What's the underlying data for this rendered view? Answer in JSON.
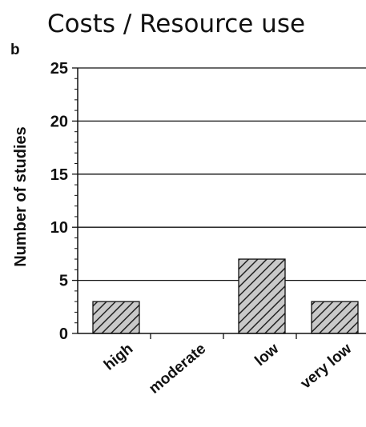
{
  "chart_data": {
    "type": "bar",
    "title": "Costs / Resource use",
    "panel_label": "b",
    "xlabel": "",
    "ylabel": "Number of studies",
    "categories": [
      "high",
      "moderate",
      "low",
      "very low"
    ],
    "values": [
      3,
      0,
      7,
      3
    ],
    "ylim": [
      0,
      25
    ],
    "yticks": [
      "0",
      "5",
      "10",
      "15",
      "20",
      "25"
    ],
    "grid": "horizontal major lines",
    "legend": "none",
    "bar_fill": "hatched",
    "colors": {
      "bar_fill": "#c9c9c9",
      "hatch": "#222222",
      "text": "#111111"
    }
  }
}
